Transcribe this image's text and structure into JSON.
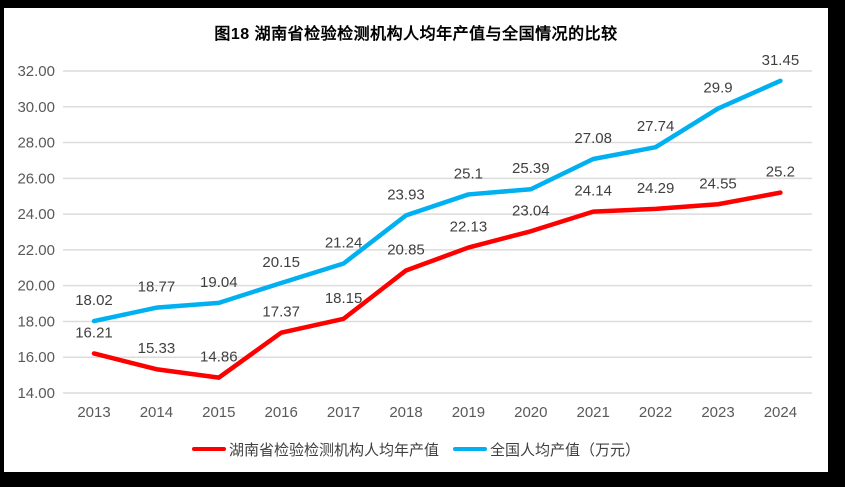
{
  "frame": {
    "border_color": "#000000",
    "canvas_color": "#ffffff"
  },
  "chart_data": {
    "type": "line",
    "title": "图18 湖南省检验检测机构人均年产值与全国情况的比较",
    "xlabel": "",
    "ylabel": "",
    "categories": [
      "2013",
      "2014",
      "2015",
      "2016",
      "2017",
      "2018",
      "2019",
      "2020",
      "2021",
      "2022",
      "2023",
      "2024"
    ],
    "series": [
      {
        "name": "湖南省检验检测机构人均年产值",
        "color": "#FE0000",
        "values": [
          16.21,
          15.33,
          14.86,
          17.37,
          18.15,
          20.85,
          22.13,
          23.04,
          24.14,
          24.29,
          24.55,
          25.2
        ],
        "labels": [
          "16.21",
          "15.33",
          "14.86",
          "17.37",
          "18.15",
          "20.85",
          "22.13",
          "23.04",
          "24.14",
          "24.29",
          "24.55",
          "25.2"
        ]
      },
      {
        "name": "全国人均产值（万元）",
        "color": "#00B0F0",
        "values": [
          18.02,
          18.77,
          19.04,
          20.15,
          21.24,
          23.93,
          25.1,
          25.39,
          27.08,
          27.74,
          29.9,
          31.45
        ],
        "labels": [
          "18.02",
          "18.77",
          "19.04",
          "20.15",
          "21.24",
          "23.93",
          "25.1",
          "25.39",
          "27.08",
          "27.74",
          "29.9",
          "31.45"
        ]
      }
    ],
    "ylim": [
      14,
      32
    ],
    "ytick_step": 2,
    "y_tick_labels": [
      "14.00",
      "16.00",
      "18.00",
      "20.00",
      "22.00",
      "24.00",
      "26.00",
      "28.00",
      "30.00",
      "32.00"
    ],
    "grid": true,
    "legend_position": "bottom",
    "colors": {
      "grid": "#DCDCDC",
      "axis_text": "#595959",
      "data_label_text": "#404040",
      "title_text": "#000000"
    }
  }
}
